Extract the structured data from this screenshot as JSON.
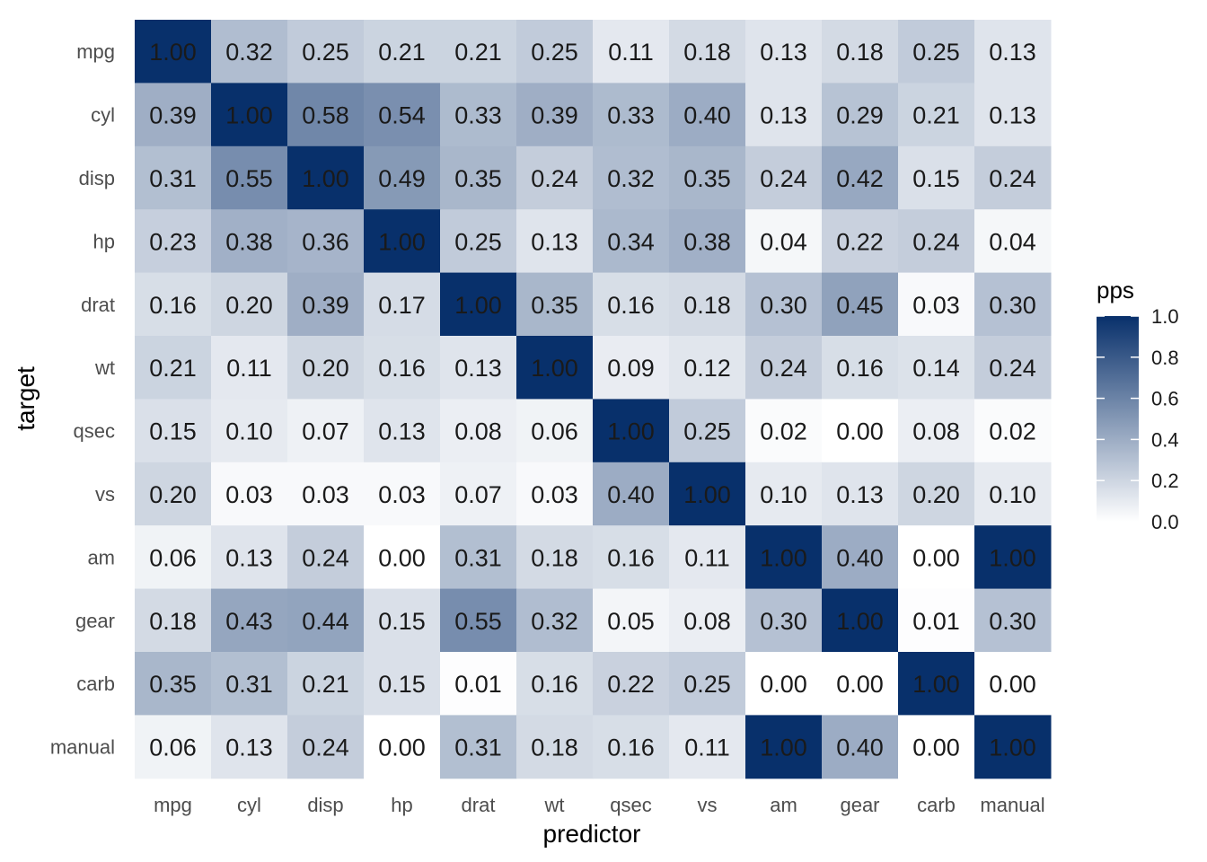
{
  "chart_data": {
    "type": "heatmap",
    "title": "",
    "xlabel": "predictor",
    "ylabel": "target",
    "x_categories": [
      "mpg",
      "cyl",
      "disp",
      "hp",
      "drat",
      "wt",
      "qsec",
      "vs",
      "am",
      "gear",
      "carb",
      "manual"
    ],
    "y_categories": [
      "mpg",
      "cyl",
      "disp",
      "hp",
      "drat",
      "wt",
      "qsec",
      "vs",
      "am",
      "gear",
      "carb",
      "manual"
    ],
    "values": [
      [
        1.0,
        0.32,
        0.25,
        0.21,
        0.21,
        0.25,
        0.11,
        0.18,
        0.13,
        0.18,
        0.25,
        0.13
      ],
      [
        0.39,
        1.0,
        0.58,
        0.54,
        0.33,
        0.39,
        0.33,
        0.4,
        0.13,
        0.29,
        0.21,
        0.13
      ],
      [
        0.31,
        0.55,
        1.0,
        0.49,
        0.35,
        0.24,
        0.32,
        0.35,
        0.24,
        0.42,
        0.15,
        0.24
      ],
      [
        0.23,
        0.38,
        0.36,
        1.0,
        0.25,
        0.13,
        0.34,
        0.38,
        0.04,
        0.22,
        0.24,
        0.04
      ],
      [
        0.16,
        0.2,
        0.39,
        0.17,
        1.0,
        0.35,
        0.16,
        0.18,
        0.3,
        0.45,
        0.03,
        0.3
      ],
      [
        0.21,
        0.11,
        0.2,
        0.16,
        0.13,
        1.0,
        0.09,
        0.12,
        0.24,
        0.16,
        0.14,
        0.24
      ],
      [
        0.15,
        0.1,
        0.07,
        0.13,
        0.08,
        0.06,
        1.0,
        0.25,
        0.02,
        0.0,
        0.08,
        0.02
      ],
      [
        0.2,
        0.03,
        0.03,
        0.03,
        0.07,
        0.03,
        0.4,
        1.0,
        0.1,
        0.13,
        0.2,
        0.1
      ],
      [
        0.06,
        0.13,
        0.24,
        0.0,
        0.31,
        0.18,
        0.16,
        0.11,
        1.0,
        0.4,
        0.0,
        1.0
      ],
      [
        0.18,
        0.43,
        0.44,
        0.15,
        0.55,
        0.32,
        0.05,
        0.08,
        0.3,
        1.0,
        0.01,
        0.3
      ],
      [
        0.35,
        0.31,
        0.21,
        0.15,
        0.01,
        0.16,
        0.22,
        0.25,
        0.0,
        0.0,
        1.0,
        0.0
      ],
      [
        0.06,
        0.13,
        0.24,
        0.0,
        0.31,
        0.18,
        0.16,
        0.11,
        1.0,
        0.4,
        0.0,
        1.0
      ]
    ],
    "value_range": [
      0,
      1
    ],
    "color_low": "#ffffff",
    "color_high": "#08306b",
    "grid": false,
    "legend": {
      "title": "pps",
      "placement": "right",
      "ticks": [
        "0.0",
        "0.2",
        "0.4",
        "0.6",
        "0.8",
        "1.0"
      ]
    }
  }
}
